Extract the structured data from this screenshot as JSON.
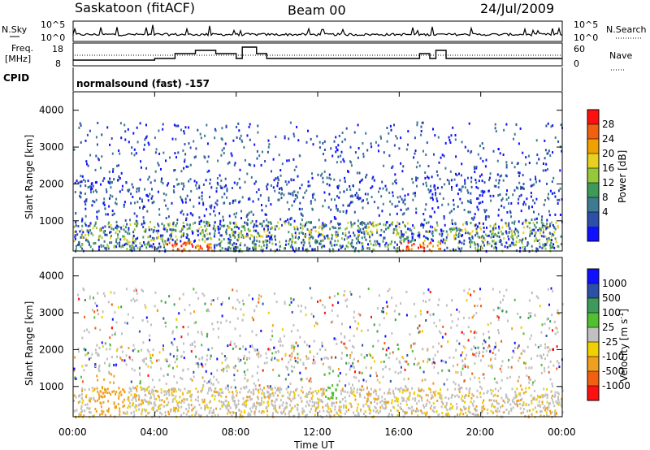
{
  "header": {
    "station": "Saskatoon (fitACF)",
    "beam": "Beam 00",
    "date": "24/Jul/2009"
  },
  "noise_panel": {
    "left_label": "N.Sky",
    "right_label": "N.Search",
    "left_ticks": [
      "10^5",
      "10^0"
    ],
    "right_ticks": [
      "10^5",
      "10^0"
    ]
  },
  "freq_panel": {
    "left_label_1": "Freq.",
    "left_label_2": "[MHz]",
    "left_ticks": [
      "18",
      "8"
    ],
    "right_ticks": [
      "60",
      "0"
    ],
    "right_label": "Nave"
  },
  "cpid_panel": {
    "label": "CPID",
    "text": "normalsound (fast) -157"
  },
  "power_panel": {
    "ylabel": "Slant Range [km]",
    "yticks": [
      "4000",
      "3000",
      "2000",
      "1000"
    ],
    "colorbar_label": "Power [dB]",
    "colorbar_ticks": [
      "28",
      "24",
      "20",
      "16",
      "12",
      "8",
      "4"
    ]
  },
  "velocity_panel": {
    "ylabel": "Slant Range [km]",
    "yticks": [
      "4000",
      "3000",
      "2000",
      "1000"
    ],
    "colorbar_label": "Velocity [m s",
    "colorbar_label_sup": "-1",
    "colorbar_label_end": "]",
    "colorbar_ticks": [
      "1000",
      "500",
      "100",
      "25",
      "-25",
      "-100",
      "-500",
      "-1000"
    ]
  },
  "xaxis": {
    "label": "Time UT",
    "ticks": [
      "00:00",
      "04:00",
      "08:00",
      "12:00",
      "16:00",
      "20:00",
      "00:00"
    ]
  },
  "colors": {
    "power_scale": [
      "#1010ff",
      "#2c4fa8",
      "#3e7a90",
      "#3d9a5a",
      "#96c83c",
      "#e8d020",
      "#f0a000",
      "#f06010",
      "#ff1010"
    ],
    "velocity_scale": [
      "#1010ff",
      "#2c4fa8",
      "#3d9a5a",
      "#50c030",
      "#c0c0c0",
      "#f0d000",
      "#f0a020",
      "#f06010",
      "#ff1010"
    ]
  },
  "chart_data": {
    "type": "heatmap",
    "x_range_hours": [
      0,
      24
    ],
    "y_range_km": [
      180,
      4500
    ],
    "power_echo_bands": [
      {
        "t0": 4.5,
        "t1": 6.8,
        "r0": 180,
        "r1": 450,
        "level": "red"
      },
      {
        "t0": 16.0,
        "t1": 18.0,
        "r0": 230,
        "r1": 330,
        "level": "red"
      },
      {
        "t0": 0.0,
        "t1": 24.0,
        "r0": 500,
        "r1": 1000,
        "level": "mixed"
      },
      {
        "t0": 12.2,
        "t1": 13.0,
        "r0": 600,
        "r1": 1500,
        "level": "green"
      }
    ],
    "velocity_echo_bands": [
      {
        "t0": 0.0,
        "t1": 24.0,
        "r0": 450,
        "r1": 1000,
        "level": "grey"
      },
      {
        "t0": 12.3,
        "t1": 13.0,
        "r0": 700,
        "r1": 1500,
        "level": "green"
      },
      {
        "t0": 1.0,
        "t1": 2.5,
        "r0": 300,
        "r1": 1400,
        "level": "orange"
      }
    ]
  }
}
